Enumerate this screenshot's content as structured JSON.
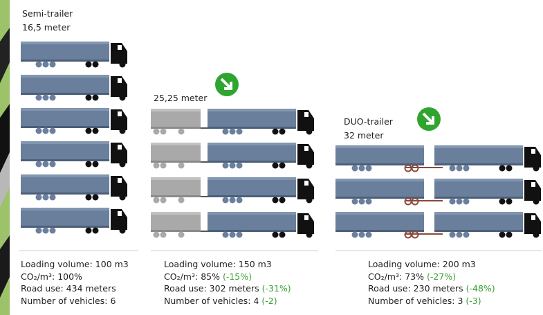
{
  "columns": [
    {
      "name": "Semi-trailer",
      "length": "16,5 meter",
      "stats": [
        {
          "label": "Loading volume:",
          "value": "100 m3"
        },
        {
          "label": "CO₂/m³:",
          "value": "100%"
        },
        {
          "label": "Road use:",
          "value": "434 meters"
        },
        {
          "label": "Number of vehicles:",
          "value": "6"
        }
      ]
    },
    {
      "length": "25,25 meter",
      "stats": [
        {
          "label": "Loading volume:",
          "value": "150 m3"
        },
        {
          "label": "CO₂/m³:",
          "value": "85%",
          "change": "(-15%)"
        },
        {
          "label": "Road use:",
          "value": "302 meters",
          "change": "(-31%)"
        },
        {
          "label": "Number of vehicles:",
          "value": "4",
          "change": "(-2)"
        }
      ]
    },
    {
      "name": "DUO-trailer",
      "length": "32 meter",
      "stats": [
        {
          "label": "Loading volume:",
          "value": "200 m3"
        },
        {
          "label": "CO₂/m³:",
          "value": "73%",
          "change": "(-27%)"
        },
        {
          "label": "Road use:",
          "value": "230 meters",
          "change": "(-48%)"
        },
        {
          "label": "Number of vehicles:",
          "value": "3",
          "change": "(-3)"
        }
      ]
    }
  ]
}
